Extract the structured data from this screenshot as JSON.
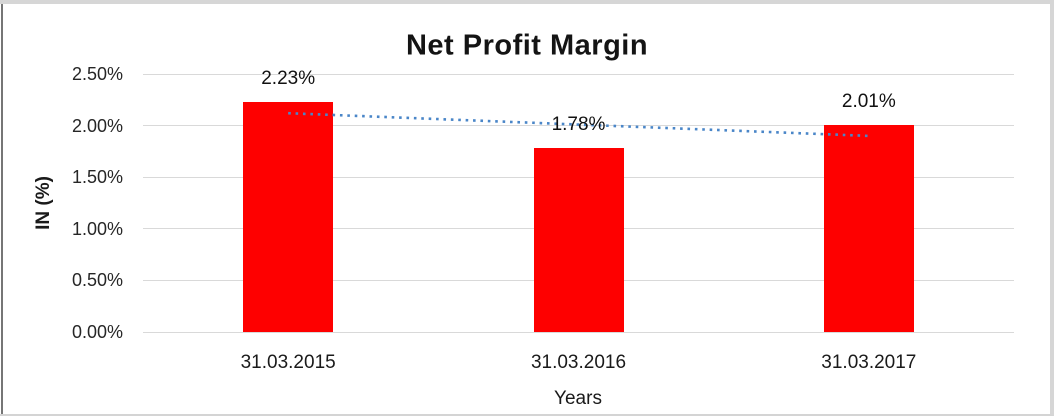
{
  "chart_data": {
    "type": "bar",
    "title": "Net Profit Margin",
    "xlabel": "Years",
    "ylabel": "IN (%)",
    "categories": [
      "31.03.2015",
      "31.03.2016",
      "31.03.2017"
    ],
    "values": [
      2.23,
      1.78,
      2.01
    ],
    "value_labels": [
      "2.23%",
      "1.78%",
      "2.01%"
    ],
    "ylim": [
      0,
      2.5
    ],
    "yticks": [
      "0.00%",
      "0.50%",
      "1.00%",
      "1.50%",
      "2.00%",
      "2.50%"
    ],
    "grid": "horizontal",
    "legend": "none",
    "bar_color": "#fe0000",
    "gridline_color": "#d9d9d9",
    "trendline": {
      "type": "linear",
      "style": "dotted",
      "color": "#4a86c8",
      "start_value": 2.12,
      "end_value": 1.9
    }
  }
}
